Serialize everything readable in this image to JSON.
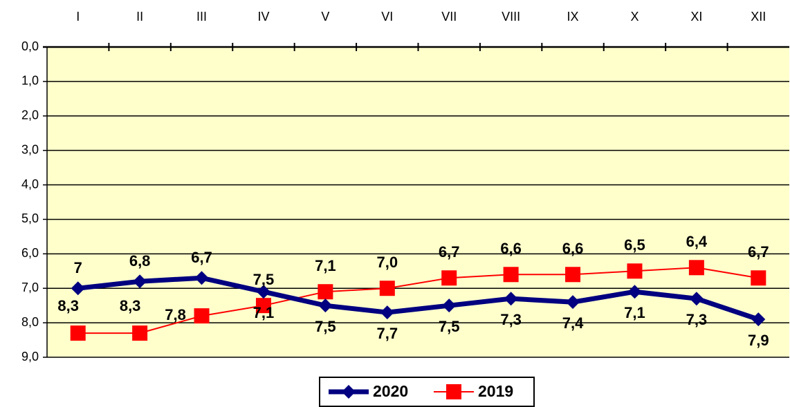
{
  "chart_data": {
    "type": "line",
    "categories": [
      "I",
      "II",
      "III",
      "IV",
      "V",
      "VI",
      "VII",
      "VIII",
      "IX",
      "X",
      "XI",
      "XII"
    ],
    "series": [
      {
        "name": "2020",
        "color": "#000080",
        "marker": "diamond",
        "values": [
          7,
          6.8,
          6.7,
          7.1,
          7.5,
          7.7,
          7.5,
          7.3,
          7.4,
          7.1,
          7.3,
          7.9
        ],
        "value_labels": [
          "7",
          "6,8",
          "6,7",
          "7,1",
          "7,5",
          "7,7",
          "7,5",
          "7,3",
          "7,4",
          "7,1",
          "7,3",
          "7,9"
        ]
      },
      {
        "name": "2019",
        "color": "#ff0000",
        "marker": "square",
        "values": [
          8.3,
          8.3,
          7.8,
          7.5,
          7.1,
          7.0,
          6.7,
          6.6,
          6.6,
          6.5,
          6.4,
          6.7
        ],
        "value_labels": [
          "8,3",
          "8,3",
          "7,8",
          "7,5",
          "7,1",
          "7,0",
          "6,7",
          "6,6",
          "6,6",
          "6,5",
          "6,4",
          "6,7"
        ]
      }
    ],
    "ylim": [
      0,
      9
    ],
    "inverted": true,
    "yticks": [
      {
        "value": 0,
        "label": "0,0"
      },
      {
        "value": 1,
        "label": "1,0"
      },
      {
        "value": 2,
        "label": "2,0"
      },
      {
        "value": 3,
        "label": "3,0"
      },
      {
        "value": 4,
        "label": "4,0"
      },
      {
        "value": 5,
        "label": "5,0"
      },
      {
        "value": 6,
        "label": "6,0"
      },
      {
        "value": 7,
        "label": "7,0"
      },
      {
        "value": 8,
        "label": "8,0"
      },
      {
        "value": 9,
        "label": "9,0"
      }
    ],
    "grid": true,
    "legend": "bottom"
  }
}
